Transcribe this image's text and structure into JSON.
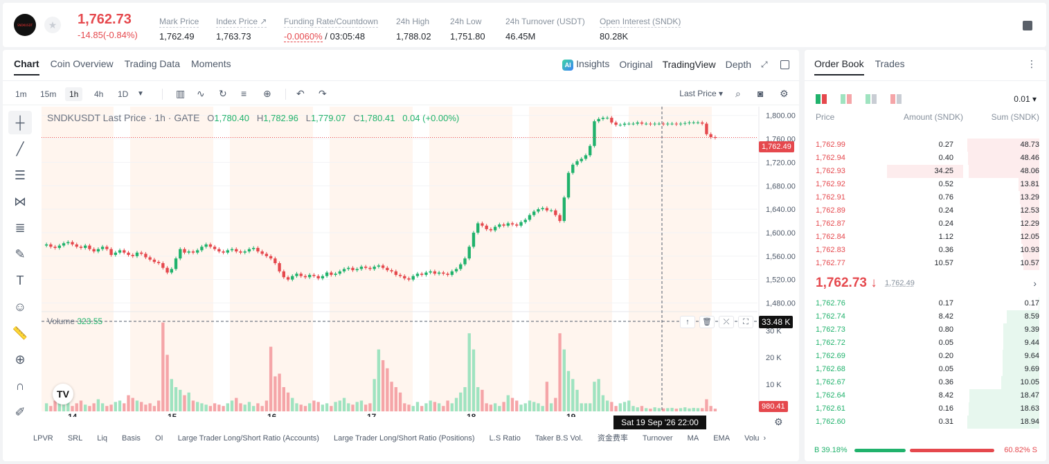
{
  "header": {
    "logo_text": "SNDKUSDT",
    "last_price": "1,762.73",
    "change": "-14.85(-0.84%)",
    "stats": [
      {
        "label": "Mark Price",
        "value": "1,762.49"
      },
      {
        "label": "Index Price ↗",
        "value": "1,763.73"
      },
      {
        "label": "Funding Rate/Countdown",
        "value_red": "-0.0060%",
        "value": " / 03:05:48"
      },
      {
        "label": "24h High",
        "value": "1,788.02"
      },
      {
        "label": "24h Low",
        "value": "1,751.80"
      },
      {
        "label": "24h Turnover (USDT)",
        "value": "46.45M"
      },
      {
        "label": "Open Interest (SNDK)",
        "value": "80.28K"
      }
    ]
  },
  "chart_tabs": [
    "Chart",
    "Coin Overview",
    "Trading Data",
    "Moments"
  ],
  "view_tabs": {
    "insights": "Insights",
    "original": "Original",
    "tradingview": "TradingView",
    "depth": "Depth"
  },
  "timeframes": [
    "1m",
    "15m",
    "1h",
    "4h",
    "1D"
  ],
  "last_price_select": "Last Price",
  "ohlc": {
    "symbol": "SNDKUSDT Last Price · 1h · GATE",
    "o": "1,780.40",
    "h": "1,782.96",
    "l": "1,779.07",
    "c": "1,780.41",
    "chg": "0.04 (+0.00%)"
  },
  "volume": {
    "label": "Volume",
    "value": "323.55"
  },
  "markers": {
    "last": "1,762.49",
    "volume_cross": "33.48 K",
    "volume_last": "980.41",
    "time_cross": "Sat 19 Sep '26   22:00"
  },
  "indicators": [
    "LPVR",
    "SRL",
    "Liq",
    "Basis",
    "OI",
    "Large Trader Long/Short Ratio (Accounts)",
    "Large Trader Long/Short Ratio (Positions)",
    "L.S Ratio",
    "Taker B.S Vol.",
    "资金费率",
    "Turnover",
    "MA",
    "EMA",
    "Volu"
  ],
  "colors": {
    "up": "#20b26c",
    "down": "#e5484d"
  },
  "chart_data": {
    "type": "candlestick",
    "price_axis": [
      "1,800.00",
      "1,760.00",
      "1,720.00",
      "1,680.00",
      "1,640.00",
      "1,600.00",
      "1,560.00",
      "1,520.00",
      "1,480.00"
    ],
    "volume_axis": [
      "30 K",
      "20 K",
      "10 K"
    ],
    "x_ticks": [
      "14",
      "15",
      "16",
      "17",
      "18",
      "19"
    ],
    "ylim": [
      1470,
      1815
    ],
    "volume_ylim": [
      0,
      36000
    ],
    "start_price": 1578,
    "closes": [
      1580,
      1576,
      1574,
      1578,
      1582,
      1584,
      1580,
      1576,
      1574,
      1578,
      1572,
      1568,
      1572,
      1576,
      1572,
      1562,
      1566,
      1570,
      1566,
      1562,
      1560,
      1566,
      1564,
      1558,
      1554,
      1550,
      1548,
      1540,
      1532,
      1538,
      1556,
      1572,
      1566,
      1568,
      1566,
      1570,
      1576,
      1580,
      1576,
      1572,
      1568,
      1566,
      1570,
      1572,
      1568,
      1566,
      1568,
      1572,
      1574,
      1568,
      1564,
      1560,
      1556,
      1548,
      1534,
      1524,
      1520,
      1526,
      1530,
      1526,
      1524,
      1528,
      1526,
      1522,
      1526,
      1532,
      1528,
      1530,
      1534,
      1538,
      1540,
      1536,
      1538,
      1542,
      1540,
      1538,
      1542,
      1544,
      1540,
      1536,
      1534,
      1528,
      1526,
      1522,
      1520,
      1526,
      1530,
      1528,
      1532,
      1534,
      1530,
      1532,
      1530,
      1528,
      1534,
      1538,
      1546,
      1556,
      1576,
      1600,
      1616,
      1612,
      1606,
      1604,
      1610,
      1614,
      1612,
      1616,
      1614,
      1612,
      1618,
      1622,
      1630,
      1636,
      1640,
      1642,
      1638,
      1638,
      1630,
      1620,
      1660,
      1702,
      1716,
      1722,
      1726,
      1732,
      1748,
      1790,
      1794,
      1796,
      1796,
      1788,
      1784,
      1784,
      1786,
      1786,
      1786,
      1788,
      1786,
      1786,
      1785,
      1786,
      1786,
      1785,
      1786,
      1786,
      1785,
      1786,
      1787,
      1788,
      1788,
      1788,
      1786,
      1768,
      1763,
      1762
    ],
    "volumes": [
      3000,
      2000,
      4000,
      3000,
      2500,
      3500,
      2000,
      3000,
      4000,
      2500,
      2000,
      3000,
      4500,
      3000,
      2000,
      2500,
      3500,
      4000,
      3000,
      6000,
      5000,
      4000,
      3500,
      2500,
      3000,
      2000,
      4000,
      33000,
      21000,
      12000,
      9000,
      8000,
      6000,
      7000,
      4000,
      3500,
      3000,
      2500,
      2000,
      3000,
      2500,
      2000,
      3000,
      4000,
      5000,
      3000,
      2500,
      3500,
      2000,
      3000,
      2000,
      4000,
      24000,
      13000,
      14000,
      9000,
      7000,
      5000,
      3000,
      2500,
      2000,
      3000,
      4000,
      3500,
      2500,
      3000,
      2000,
      3500,
      4000,
      5000,
      3000,
      2500,
      3500,
      4000,
      2500,
      3000,
      12000,
      23000,
      19000,
      16000,
      11000,
      9000,
      7000,
      3000,
      2500,
      2000,
      3500,
      2000,
      3000,
      4000,
      3500,
      3000,
      2000,
      4000,
      3000,
      5000,
      7000,
      9000,
      29000,
      23000,
      9000,
      8000,
      3000,
      2500,
      3000,
      2000,
      3500,
      6000,
      5000,
      4000,
      2500,
      3000,
      4000,
      3500,
      3000,
      2000,
      11000,
      3000,
      5000,
      29000,
      23000,
      15000,
      12000,
      8000,
      3000,
      3000,
      3000,
      11000,
      12000,
      6000,
      4000,
      3500,
      2000,
      3000,
      3500,
      4000,
      2000,
      1500,
      2000,
      1200,
      1000,
      1500,
      1200,
      1100,
      1200,
      1300,
      1000,
      1200,
      1500,
      1100,
      1300,
      1200,
      1200,
      4500,
      2000,
      1000
    ]
  },
  "orderbook": {
    "tabs": [
      "Order Book",
      "Trades"
    ],
    "precision": "0.01",
    "headers": {
      "price": "Price",
      "amount": "Amount (SNDK)",
      "sum": "Sum (SNDK)"
    },
    "asks": [
      {
        "price": "1,762.99",
        "amount": "0.27",
        "sum": "48.73",
        "depth": 1.0,
        "amt_frac": 0.0
      },
      {
        "price": "1,762.94",
        "amount": "0.40",
        "sum": "48.46",
        "depth": 0.99,
        "amt_frac": 0.0
      },
      {
        "price": "1,762.93",
        "amount": "34.25",
        "sum": "48.06",
        "depth": 0.98,
        "amt_frac": 1.0
      },
      {
        "price": "1,762.92",
        "amount": "0.52",
        "sum": "13.81",
        "depth": 0.29,
        "amt_frac": 0.0
      },
      {
        "price": "1,762.91",
        "amount": "0.76",
        "sum": "13.29",
        "depth": 0.27,
        "amt_frac": 0.0
      },
      {
        "price": "1,762.89",
        "amount": "0.24",
        "sum": "12.53",
        "depth": 0.26,
        "amt_frac": 0.0
      },
      {
        "price": "1,762.87",
        "amount": "0.24",
        "sum": "12.29",
        "depth": 0.25,
        "amt_frac": 0.0
      },
      {
        "price": "1,762.84",
        "amount": "1.12",
        "sum": "12.05",
        "depth": 0.25,
        "amt_frac": 0.0
      },
      {
        "price": "1,762.83",
        "amount": "0.36",
        "sum": "10.93",
        "depth": 0.23,
        "amt_frac": 0.0
      },
      {
        "price": "1,762.77",
        "amount": "10.57",
        "sum": "10.57",
        "depth": 0.22,
        "amt_frac": 0.0
      }
    ],
    "mid": {
      "price": "1,762.73 ↓",
      "mark": "1,762.49"
    },
    "bids": [
      {
        "price": "1,762.76",
        "amount": "0.17",
        "sum": "0.17",
        "depth": 0.01
      },
      {
        "price": "1,762.74",
        "amount": "8.42",
        "sum": "8.59",
        "depth": 0.45
      },
      {
        "price": "1,762.73",
        "amount": "0.80",
        "sum": "9.39",
        "depth": 0.5
      },
      {
        "price": "1,762.72",
        "amount": "0.05",
        "sum": "9.44",
        "depth": 0.5
      },
      {
        "price": "1,762.69",
        "amount": "0.20",
        "sum": "9.64",
        "depth": 0.51
      },
      {
        "price": "1,762.68",
        "amount": "0.05",
        "sum": "9.69",
        "depth": 0.51
      },
      {
        "price": "1,762.67",
        "amount": "0.36",
        "sum": "10.05",
        "depth": 0.53
      },
      {
        "price": "1,762.64",
        "amount": "8.42",
        "sum": "18.47",
        "depth": 0.97
      },
      {
        "price": "1,762.61",
        "amount": "0.16",
        "sum": "18.63",
        "depth": 0.98
      },
      {
        "price": "1,762.60",
        "amount": "0.31",
        "sum": "18.94",
        "depth": 1.0
      }
    ],
    "buy_ratio": "B 39.18%",
    "sell_ratio": "60.82% S"
  }
}
